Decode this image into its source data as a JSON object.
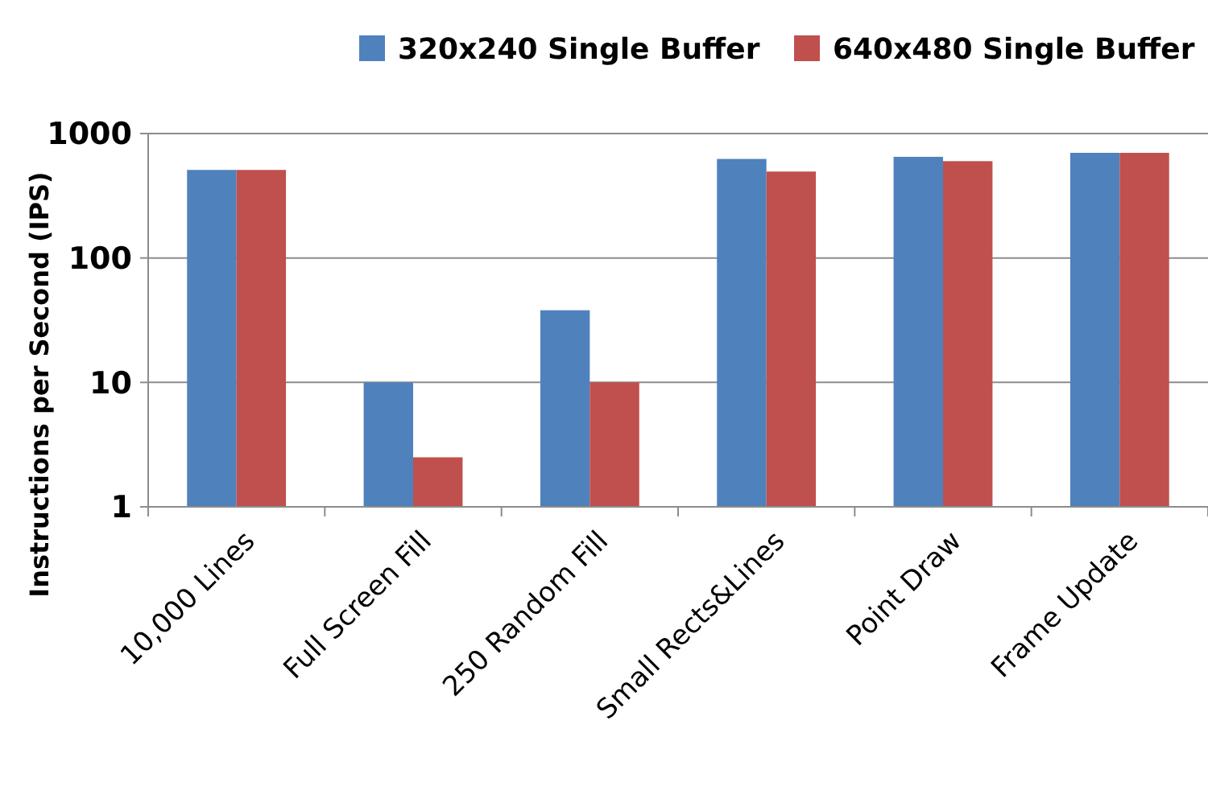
{
  "chart_data": {
    "type": "bar",
    "ylabel": "Instructions per Second (IPS)",
    "categories": [
      "10,000 Lines",
      "Full Screen Fill",
      "250 Random Fill",
      "Small Rects&Lines",
      "Point Draw",
      "Frame Update"
    ],
    "series": [
      {
        "name": "320x240 Single Buffer",
        "color": "#4f81bd",
        "values": [
          510,
          10,
          38,
          625,
          650,
          700
        ]
      },
      {
        "name": "640x480 Single Buffer",
        "color": "#c0504d",
        "values": [
          510,
          2.5,
          10,
          495,
          600,
          700
        ]
      }
    ],
    "log": "y",
    "ylim": [
      1,
      1000
    ],
    "yticks": [
      1,
      10,
      100,
      1000
    ],
    "grid": "y",
    "legend": "top"
  }
}
